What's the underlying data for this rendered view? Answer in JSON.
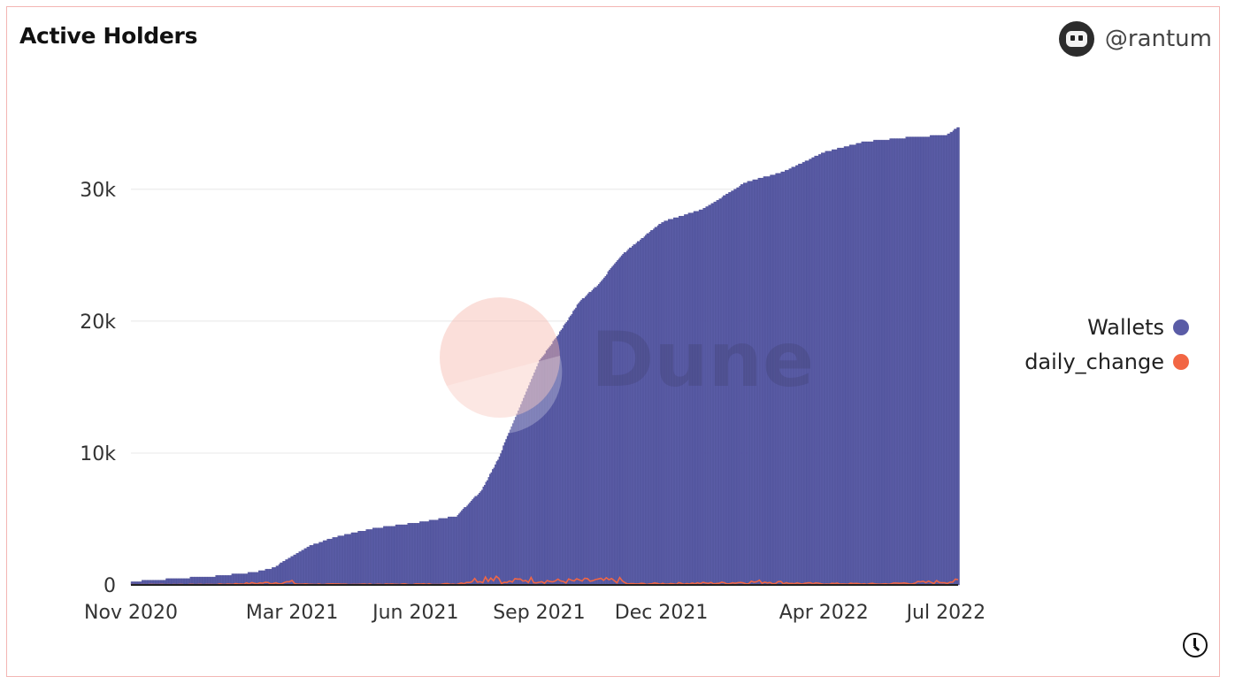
{
  "header": {
    "title": "Active Holders",
    "author": "@rantum"
  },
  "watermark": {
    "text": "Dune"
  },
  "legend": [
    {
      "label": "Wallets",
      "color": "#5a5ca6"
    },
    {
      "label": "daily_change",
      "color": "#f26644"
    }
  ],
  "chart_data": {
    "type": "bar",
    "x_ticks": [
      "Nov 2020",
      "Mar 2021",
      "Jun 2021",
      "Sep 2021",
      "Dec 2021",
      "Apr 2022",
      "Jul 2022"
    ],
    "y_ticks": [
      "0",
      "10k",
      "20k",
      "30k"
    ],
    "ylim": [
      0,
      35000
    ],
    "grid": true,
    "legend_position": "right",
    "series": [
      {
        "name": "Wallets",
        "type": "bar",
        "color": "#5a5ca6",
        "points": [
          [
            "2020-11-01",
            250
          ],
          [
            "2020-12-01",
            450
          ],
          [
            "2021-01-01",
            650
          ],
          [
            "2021-02-01",
            950
          ],
          [
            "2021-02-15",
            1300
          ],
          [
            "2021-03-01",
            2200
          ],
          [
            "2021-03-15",
            3000
          ],
          [
            "2021-04-01",
            3600
          ],
          [
            "2021-05-01",
            4300
          ],
          [
            "2021-06-01",
            4700
          ],
          [
            "2021-07-01",
            5200
          ],
          [
            "2021-07-20",
            7200
          ],
          [
            "2021-08-01",
            9500
          ],
          [
            "2021-08-15",
            13000
          ],
          [
            "2021-09-01",
            17000
          ],
          [
            "2021-09-15",
            19000
          ],
          [
            "2021-10-01",
            21500
          ],
          [
            "2021-10-15",
            22800
          ],
          [
            "2021-11-01",
            25000
          ],
          [
            "2021-12-01",
            27500
          ],
          [
            "2022-01-01",
            28500
          ],
          [
            "2022-02-01",
            30500
          ],
          [
            "2022-03-01",
            31300
          ],
          [
            "2022-04-01",
            32800
          ],
          [
            "2022-05-01",
            33600
          ],
          [
            "2022-06-01",
            33900
          ],
          [
            "2022-07-01",
            34100
          ],
          [
            "2022-07-10",
            34700
          ]
        ]
      },
      {
        "name": "daily_change",
        "type": "line",
        "color": "#f26644",
        "points": [
          [
            "2020-11-01",
            30
          ],
          [
            "2021-01-01",
            40
          ],
          [
            "2021-03-01",
            300
          ],
          [
            "2021-03-05",
            80
          ],
          [
            "2021-05-01",
            60
          ],
          [
            "2021-07-01",
            100
          ],
          [
            "2021-08-01",
            1000
          ],
          [
            "2021-08-05",
            200
          ],
          [
            "2021-08-20",
            600
          ],
          [
            "2021-09-10",
            400
          ],
          [
            "2021-11-01",
            500
          ],
          [
            "2021-11-05",
            100
          ],
          [
            "2022-01-15",
            200
          ],
          [
            "2022-02-15",
            350
          ],
          [
            "2022-03-15",
            150
          ],
          [
            "2022-05-15",
            100
          ],
          [
            "2022-07-10",
            400
          ]
        ]
      }
    ]
  }
}
